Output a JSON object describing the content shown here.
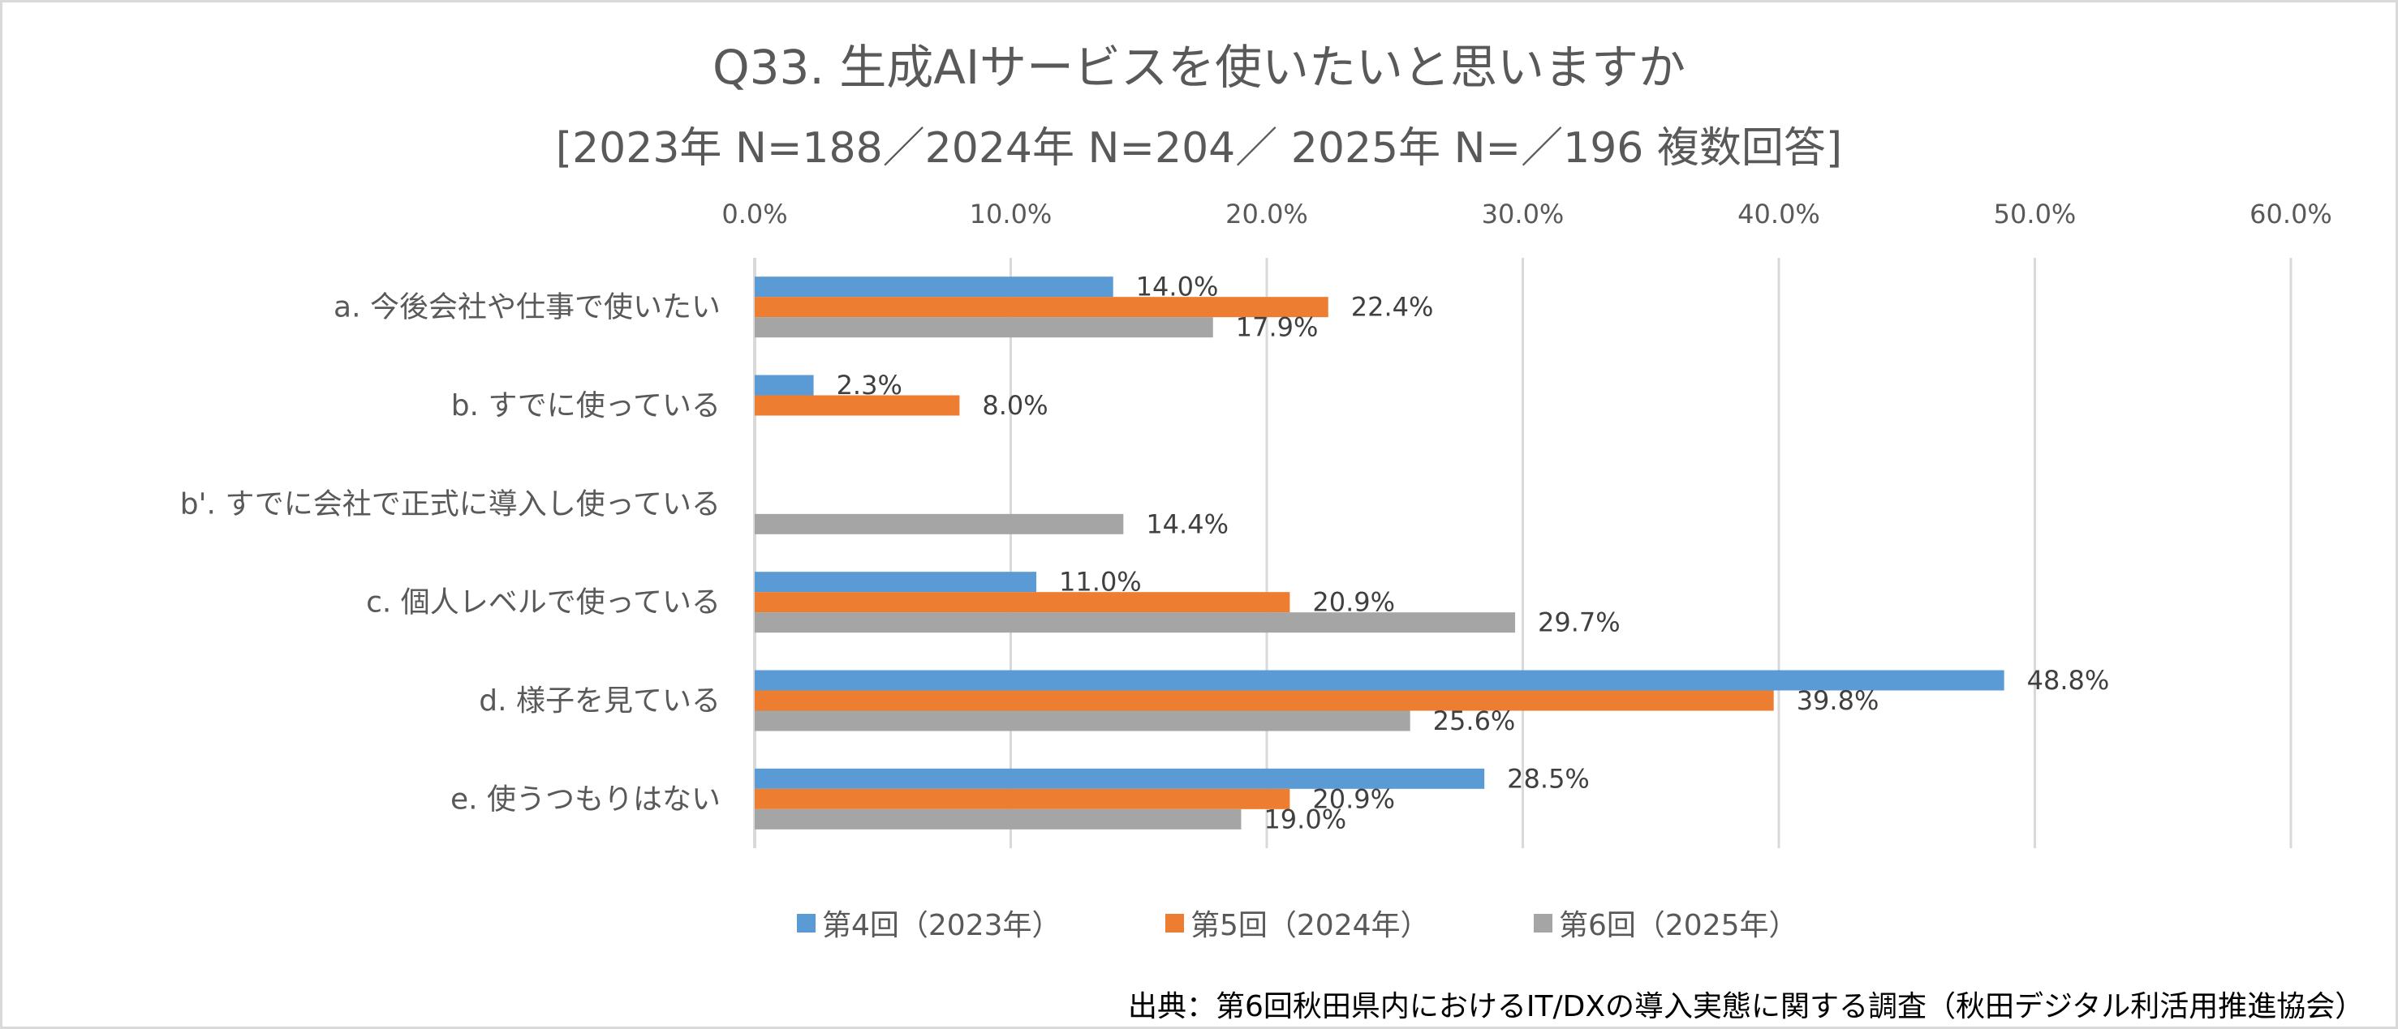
{
  "title": "Q33.  生成AIサービスを使いたいと思いますか",
  "subtitle": "[2023年 N=188／2024年 N=204／ 2025年 N=／196 複数回答]",
  "source": "出典：第6回秋田県内におけるIT/DXの導入実態に関する調査（秋田デジタル利活用推進協会）",
  "colors": {
    "series1": "#5b9bd5",
    "series2": "#ed7d31",
    "series3": "#a5a5a5",
    "gridline": "#d9d9d9",
    "text": "#595959",
    "data_label": "#404040"
  },
  "chart_data": {
    "type": "bar",
    "orientation": "horizontal",
    "title": "Q33.  生成AIサービスを使いたいと思いますか",
    "subtitle": "[2023年 N=188／2024年 N=204／ 2025年 N=／196 複数回答]",
    "xlabel": "",
    "ylabel": "",
    "xlim": [
      0,
      60
    ],
    "x_ticks": [
      0,
      10,
      20,
      30,
      40,
      50,
      60
    ],
    "x_tick_labels": [
      "0.0%",
      "10.0%",
      "20.0%",
      "30.0%",
      "40.0%",
      "50.0%",
      "60.0%"
    ],
    "value_format": "percent_1dp",
    "grid": true,
    "legend_position": "bottom",
    "categories": [
      "a. 今後会社や仕事で使いたい",
      "b. すでに使っている",
      "b'. すでに会社で正式に導入し使っている",
      "c. 個人レベルで使っている",
      "d. 様子を見ている",
      "e. 使うつもりはない"
    ],
    "series": [
      {
        "name": "第4回（2023年）",
        "color": "#5b9bd5",
        "values": [
          14.0,
          2.3,
          null,
          11.0,
          48.8,
          28.5
        ]
      },
      {
        "name": "第5回（2024年）",
        "color": "#ed7d31",
        "values": [
          22.4,
          8.0,
          null,
          20.9,
          39.8,
          20.9
        ]
      },
      {
        "name": "第6回（2025年）",
        "color": "#a5a5a5",
        "values": [
          17.9,
          null,
          14.4,
          29.7,
          25.6,
          19.0
        ]
      }
    ]
  }
}
